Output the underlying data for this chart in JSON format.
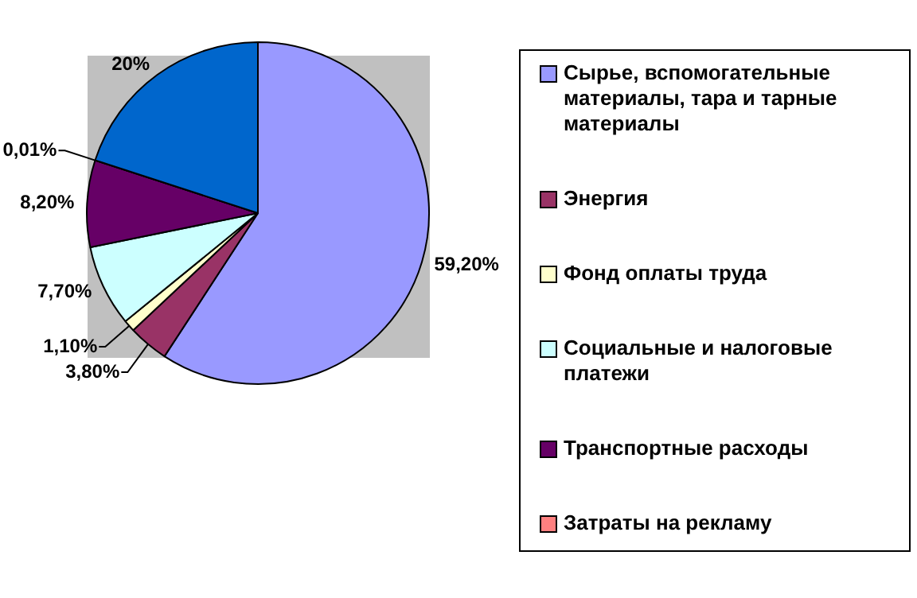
{
  "chart_data": {
    "type": "pie",
    "categories": [
      "Сырье, вспомогательные материалы, тара и тарные материалы",
      "Энергия",
      "Фонд оплаты труда",
      "Социальные и налоговые платежи",
      "Транспортные расходы",
      "Затраты на рекламу",
      null
    ],
    "values": [
      59.2,
      3.8,
      1.1,
      7.7,
      8.2,
      0.01,
      20
    ],
    "colors": [
      "#9999ff",
      "#993366",
      "#ffffcc",
      "#ccffff",
      "#660066",
      "#ff8080",
      "#0066cc"
    ],
    "value_labels": [
      "59,20%",
      "3,80%",
      "1,10%",
      "7,70%",
      "8,20%",
      "0,01%",
      "20%"
    ],
    "legend": "right"
  }
}
